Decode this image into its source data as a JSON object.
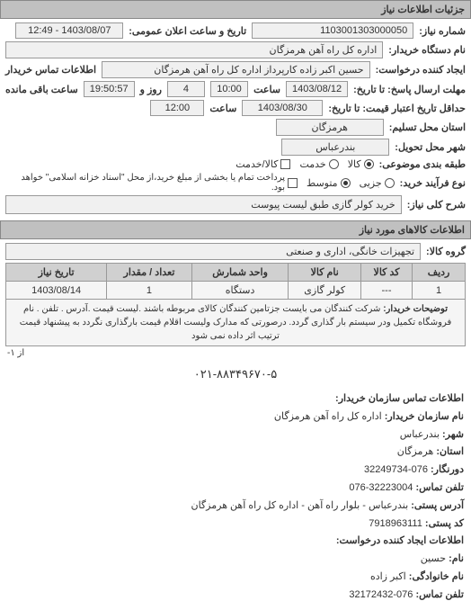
{
  "header": "جزئیات اطلاعات نیاز",
  "request": {
    "number_label": "شماره نیاز:",
    "number": "1103001303000050",
    "announce_label": "تاریخ و ساعت اعلان عمومی:",
    "announce_dt": "1403/08/07 - 12:49",
    "org_label": "نام دستگاه خریدار:",
    "org": "اداره کل راه آهن هرمزگان",
    "requester_label": "ایجاد کننده درخواست:",
    "requester": "حسین اکبر زاده  کارپرداز اداره کل راه آهن هرمزگان",
    "contact_buyer_label": "اطلاعات تماس خریدار",
    "reply_deadline_label": "مهلت ارسال پاسخ: تا تاریخ:",
    "reply_date": "1403/08/12",
    "time_label": "ساعت",
    "reply_time": "10:00",
    "and_label": "روز و",
    "days_left": "4",
    "remaining_label": "ساعت باقی مانده",
    "remaining_time": "19:50:57",
    "validity_label": "حداقل تاریخ اعتبار قیمت: تا تاریخ:",
    "validity_date": "1403/08/30",
    "validity_time": "12:00",
    "province_label": "استان محل تسلیم:",
    "province": "هرمزگان",
    "city_label": "شهر محل تحویل:",
    "city": "بندرعباس",
    "type_label": "طبقه بندی موضوعی:",
    "type_goods": "کالا",
    "type_service": "خدمت",
    "type_both": "کالا/خدمت",
    "payment_label": "نوع فرآیند خرید:",
    "pay_low": "جزیی",
    "pay_mid": "متوسط",
    "pay_note": "پرداخت تمام یا بخشی از مبلغ خرید،از محل \"اسناد خزانه اسلامی\" خواهد بود.",
    "title_label": "شرح کلی نیاز:",
    "title": "خرید کولر گازی طبق لیست پیوست"
  },
  "items_header": "اطلاعات کالاهای مورد نیاز",
  "group_label": "گروه کالا:",
  "group": "تجهیزات خانگی، اداری و صنعتی",
  "table": {
    "cols": [
      "ردیف",
      "کد کالا",
      "نام کالا",
      "واحد شمارش",
      "تعداد / مقدار",
      "تاریخ نیاز"
    ],
    "row": [
      "1",
      "---",
      "کولر گازی",
      "دستگاه",
      "1",
      "1403/08/14"
    ],
    "notes_label": "توضیحات خریدار:",
    "notes": "شرکت کنندگان می بایست جزتامین کنندگان کالای مربوطه باشند .لیست قیمت .آدرس . تلفن . نام فروشگاه تکمیل ودر سیستم بار گذاری گردد. درصورتی که مدارک ولیست اقلام قیمت بارگذاری نگردد به پیشنهاد قیمت ترتیب اثر داده نمی شود",
    "pager": "از ۱-"
  },
  "central_phone": "۰۲۱-۸۸۳۴۹۶۷۰-۵",
  "contact": {
    "header": "اطلاعات تماس سازمان خریدار:",
    "org_label": "نام سازمان خریدار:",
    "org": "اداره کل راه آهن هرمزگان",
    "city_label": "شهر:",
    "city": "بندرعباس",
    "province_label": "استان:",
    "province": "هرمزگان",
    "fax_label": "دورنگار:",
    "fax": "076-32249734",
    "phone_label": "تلفن تماس:",
    "phone": "32223004-076",
    "address_label": "آدرس پستی:",
    "address": "بندرعباس - بلوار راه آهن - اداره کل راه آهن هرمزگان",
    "postal_label": "کد پستی:",
    "postal": "7918963111",
    "creator_header": "اطلاعات ایجاد کننده درخواست:",
    "name_label": "نام:",
    "name": "حسین",
    "family_label": "نام خانوادگی:",
    "family": "اکبر زاده",
    "cphone_label": "تلفن تماس:",
    "cphone": "076-32172432"
  }
}
